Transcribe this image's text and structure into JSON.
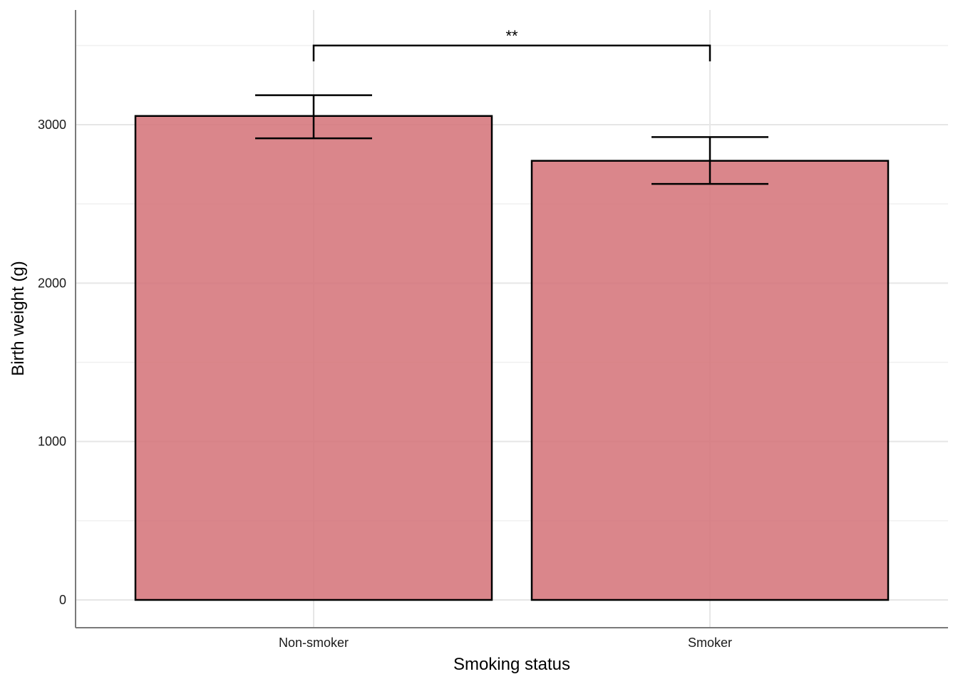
{
  "chart_data": {
    "type": "bar",
    "title": "",
    "xlabel": "Smoking status",
    "ylabel": "Birth weight (g)",
    "categories": [
      "Non-smoker",
      "Smoker"
    ],
    "values": [
      3055,
      2772
    ],
    "error_low": [
      2914,
      2626
    ],
    "error_high": [
      3186,
      2922
    ],
    "ylim": [
      -175,
      3750
    ],
    "yticks": [
      0,
      1000,
      2000,
      3000
    ],
    "ytick_labels": [
      "0",
      "1000",
      "2000",
      "3000"
    ],
    "grid": true,
    "legend": "none",
    "bar_fill": "#d47177",
    "bar_fill_opacity": 0.85,
    "bar_outline": "#000000",
    "significance": {
      "label": "**",
      "between": [
        "Non-smoker",
        "Smoker"
      ],
      "y": 3500,
      "tip_bottom": 3400
    }
  }
}
